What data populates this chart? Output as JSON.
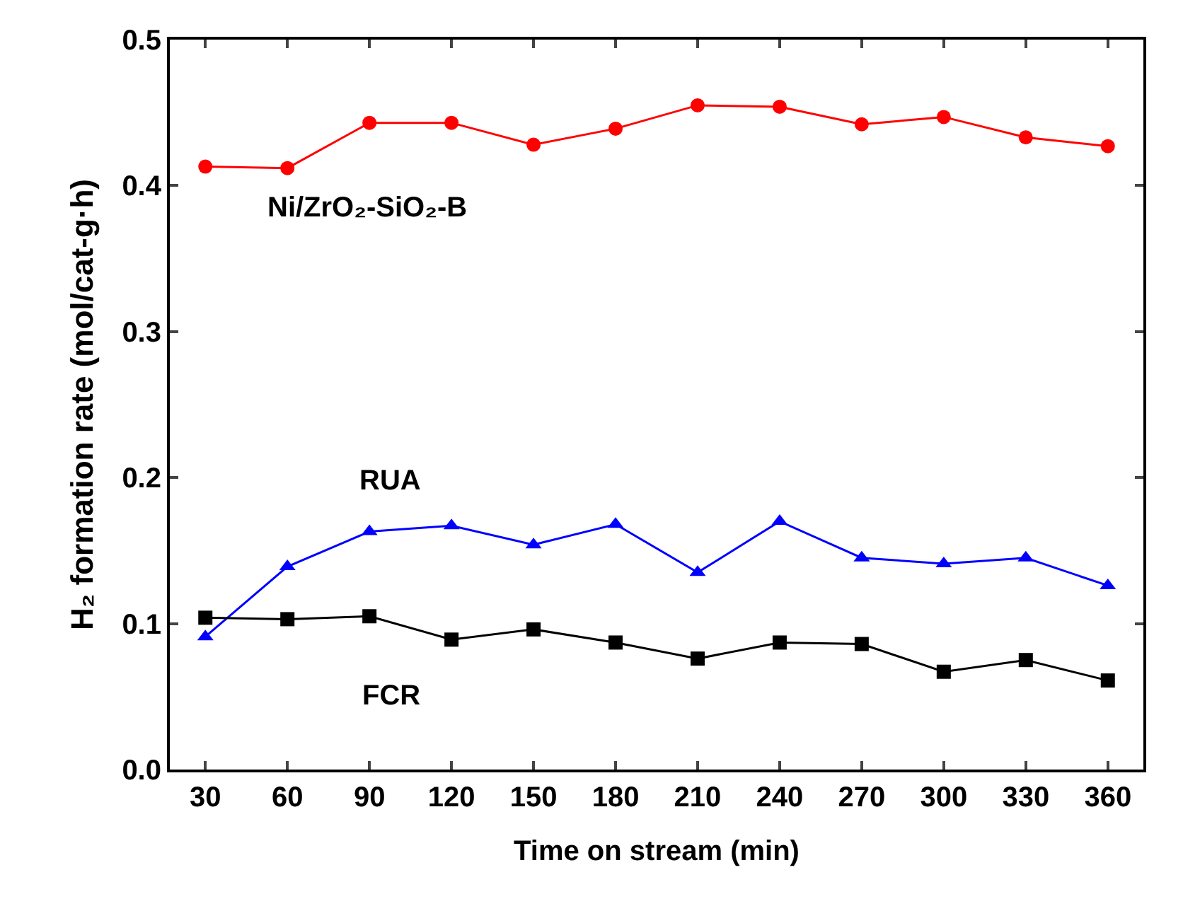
{
  "chart_data": {
    "type": "line",
    "xlabel": "Time on stream (min)",
    "ylabel": "H₂ formation rate (mol/cat-g·h)",
    "x": [
      30,
      60,
      90,
      120,
      150,
      180,
      210,
      240,
      270,
      300,
      330,
      360
    ],
    "xlim": [
      17,
      373
    ],
    "xticks": [
      30,
      60,
      90,
      120,
      150,
      180,
      210,
      240,
      270,
      300,
      330,
      360
    ],
    "ylim": [
      0,
      0.5
    ],
    "yticks": [
      {
        "value": 0,
        "label": "0.0"
      },
      0.1,
      0.2,
      0.3,
      0.4,
      0.5
    ],
    "grid": false,
    "legend": false,
    "series": [
      {
        "name": "Ni/ZrO₂-SiO₂-B",
        "color": "#ff0000",
        "marker": "circle",
        "values": [
          0.413,
          0.412,
          0.443,
          0.443,
          0.428,
          0.439,
          0.455,
          0.454,
          0.442,
          0.447,
          0.433,
          0.427
        ]
      },
      {
        "name": "RUA",
        "color": "#0000ff",
        "marker": "triangle",
        "values": [
          0.091,
          0.139,
          0.163,
          0.167,
          0.154,
          0.168,
          0.135,
          0.17,
          0.145,
          0.141,
          0.145,
          0.126
        ]
      },
      {
        "name": "FCR",
        "color": "#000000",
        "marker": "square",
        "values": [
          0.104,
          0.103,
          0.105,
          0.089,
          0.096,
          0.087,
          0.076,
          0.087,
          0.086,
          0.067,
          0.075,
          0.061
        ]
      }
    ]
  }
}
